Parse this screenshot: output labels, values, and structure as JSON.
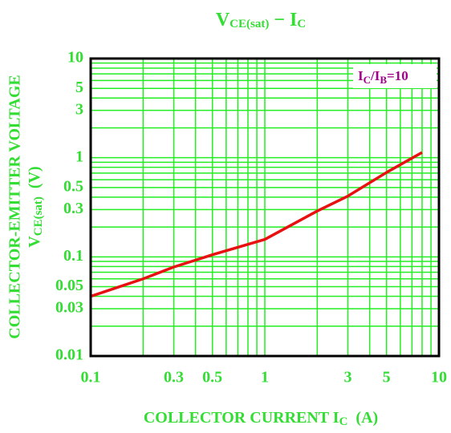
{
  "chart_data": {
    "type": "line",
    "title": [
      "V",
      "CE(sat)",
      " − I",
      "C"
    ],
    "y_label": [
      "COLLECTOR-EMITTER VOLTAGE",
      "V",
      "CE(sat)",
      "  (V)"
    ],
    "x_label": [
      "COLLECTOR CURRENT I",
      "C",
      "  (A)"
    ],
    "annotation": [
      "I",
      "C",
      "/I",
      "B",
      "=10"
    ],
    "x": [
      0.1,
      0.2,
      0.3,
      0.5,
      1,
      2,
      3,
      5,
      8
    ],
    "series": [
      {
        "name": "IC/IB=10",
        "color": "#e81010",
        "values": [
          0.04,
          0.06,
          0.079,
          0.105,
          0.15,
          0.29,
          0.41,
          0.71,
          1.13
        ]
      }
    ],
    "log_x": true,
    "log_y": true,
    "xlim": [
      0.1,
      10
    ],
    "ylim": [
      0.01,
      10
    ],
    "xticks": [
      0.1,
      0.3,
      0.5,
      1,
      3,
      5,
      10
    ],
    "yticks": [
      0.01,
      0.03,
      0.05,
      0.1,
      0.3,
      0.5,
      1,
      3,
      5,
      10
    ],
    "x_grid": [
      0.1,
      0.2,
      0.3,
      0.4,
      0.5,
      0.6,
      0.7,
      0.8,
      0.9,
      1,
      2,
      3,
      4,
      5,
      6,
      7,
      8,
      9,
      10
    ],
    "y_grid": [
      0.01,
      0.02,
      0.03,
      0.04,
      0.05,
      0.06,
      0.07,
      0.08,
      0.09,
      0.1,
      0.2,
      0.3,
      0.4,
      0.5,
      0.6,
      0.7,
      0.8,
      0.9,
      1,
      2,
      3,
      4,
      5,
      6,
      7,
      8,
      9,
      10
    ],
    "grid_color": "#22ee22"
  }
}
